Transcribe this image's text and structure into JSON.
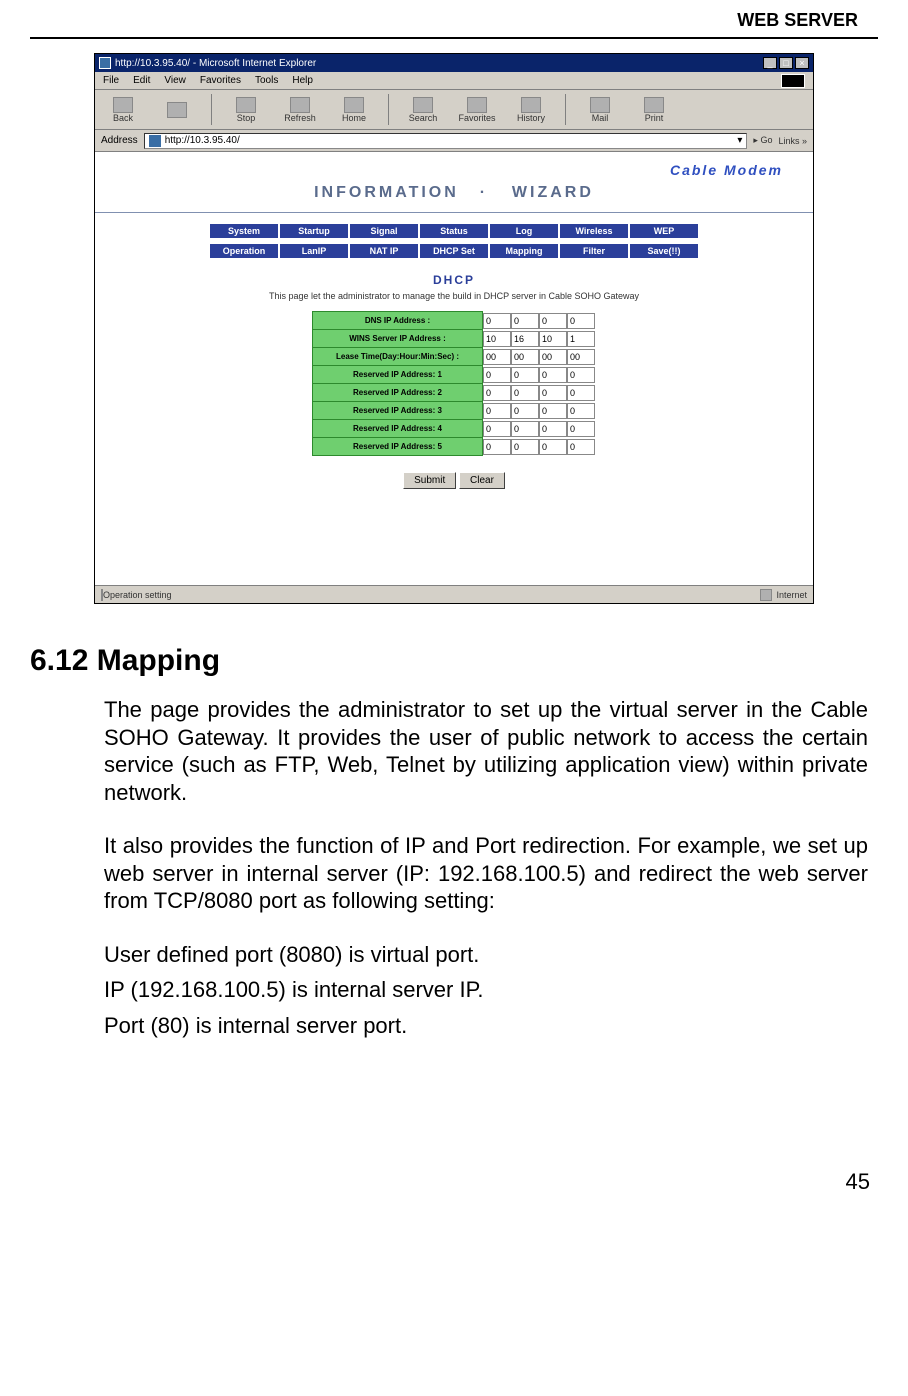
{
  "header": {
    "title": "WEB SERVER"
  },
  "shot": {
    "titlebar": "http://10.3.95.40/ - Microsoft Internet Explorer",
    "menus": [
      "File",
      "Edit",
      "View",
      "Favorites",
      "Tools",
      "Help"
    ],
    "tools": [
      "Back",
      "",
      "Stop",
      "Refresh",
      "Home",
      "Search",
      "Favorites",
      "History",
      "Mail",
      "Print"
    ],
    "addr_label": "Address",
    "addr_value": "http://10.3.95.40/",
    "go_label": "Go",
    "links_label": "Links »",
    "brand": "Cable Modem",
    "info_l": "INFORMATION",
    "info_sep": "·",
    "info_r": "WIZARD",
    "tabs1": [
      "System",
      "Startup",
      "Signal",
      "Status",
      "Log",
      "Wireless",
      "WEP"
    ],
    "tabs2": [
      "Operation",
      "LanIP",
      "NAT IP",
      "DHCP Set",
      "Mapping",
      "Filter",
      "Save(!!)"
    ],
    "dhcp_title": "DHCP",
    "dhcp_desc": "This page let the administrator to manage the build in DHCP server in Cable SOHO Gateway",
    "rows": [
      {
        "label": "DNS IP Address :",
        "vals": [
          "0",
          "0",
          "0",
          "0"
        ]
      },
      {
        "label": "WINS Server IP Address :",
        "vals": [
          "10",
          "16",
          "10",
          "1"
        ]
      },
      {
        "label": "Lease Time(Day:Hour:Min:Sec) :",
        "vals": [
          "00",
          "00",
          "00",
          "00"
        ]
      },
      {
        "label": "Reserved IP Address: 1",
        "vals": [
          "0",
          "0",
          "0",
          "0"
        ]
      },
      {
        "label": "Reserved IP Address: 2",
        "vals": [
          "0",
          "0",
          "0",
          "0"
        ]
      },
      {
        "label": "Reserved IP Address: 3",
        "vals": [
          "0",
          "0",
          "0",
          "0"
        ]
      },
      {
        "label": "Reserved IP Address: 4",
        "vals": [
          "0",
          "0",
          "0",
          "0"
        ]
      },
      {
        "label": "Reserved IP Address: 5",
        "vals": [
          "0",
          "0",
          "0",
          "0"
        ]
      }
    ],
    "btn_submit": "Submit",
    "btn_clear": "Clear",
    "status_left": "Operation setting",
    "status_right": "Internet"
  },
  "section": {
    "heading": "6.12 Mapping",
    "p1": "The page provides the administrator to set up the virtual server in the Cable SOHO Gateway. It provides the user of public network to access the certain service (such as FTP, Web, Telnet by utilizing application view) within private network.",
    "p2": "It also provides the function of IP and Port redirection. For example, we set up web server in internal server (IP: 192.168.100.5) and redirect the web server from TCP/8080 port as following setting:",
    "p3": "User defined port (8080) is virtual port.",
    "p4": "IP (192.168.100.5) is internal server IP.",
    "p5": "Port (80) is internal server port."
  },
  "pagenum": "45",
  "colors": {
    "tabbar": "#2b3f9a",
    "brand": "#3050c0",
    "row": "#6fcf6f",
    "rowborder": "#2d8a2d",
    "chrome": "#d4d0c8",
    "titlebar": "#0a246a"
  }
}
